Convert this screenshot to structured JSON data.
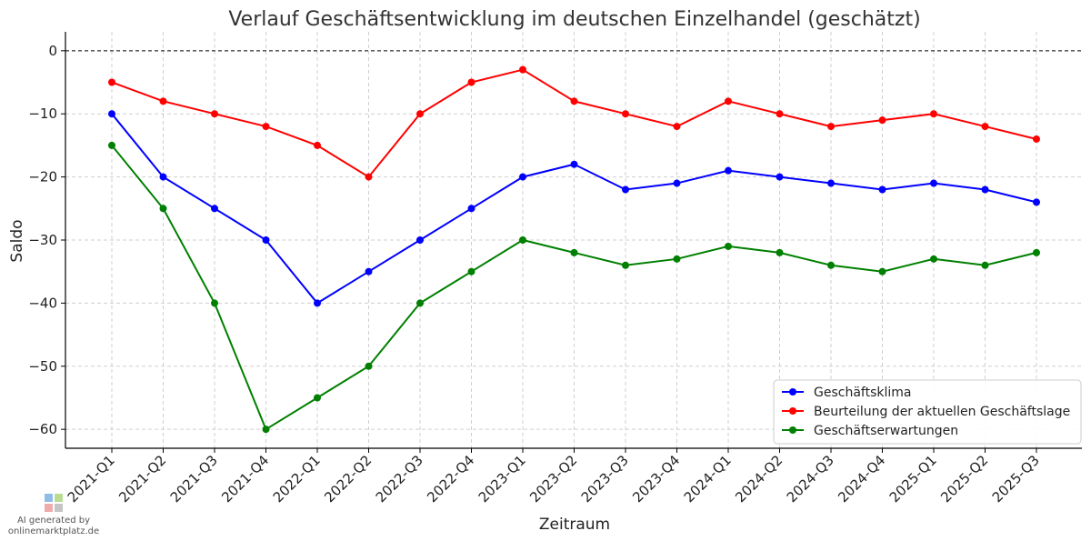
{
  "chart_data": {
    "type": "line",
    "title": "Verlauf Geschäftsentwicklung im deutschen Einzelhandel (geschätzt)",
    "xlabel": "Zeitraum",
    "ylabel": "Saldo",
    "categories": [
      "2021-Q1",
      "2021-Q2",
      "2021-Q3",
      "2021-Q4",
      "2022-Q1",
      "2022-Q2",
      "2022-Q3",
      "2022-Q4",
      "2023-Q1",
      "2023-Q2",
      "2023-Q3",
      "2023-Q4",
      "2024-Q1",
      "2024-Q2",
      "2024-Q3",
      "2024-Q4",
      "2025-Q1",
      "2025-Q2",
      "2025-Q3"
    ],
    "ylim": [
      -63,
      3
    ],
    "yticks": [
      0,
      -10,
      -20,
      -30,
      -40,
      -50,
      -60
    ],
    "ytick_labels": [
      "0",
      "−10",
      "−20",
      "−30",
      "−40",
      "−50",
      "−60"
    ],
    "reference_line": 0,
    "grid": true,
    "legend_position": "lower-right",
    "series": [
      {
        "name": "Geschäftsklima",
        "color": "#0000ff",
        "values": [
          -10,
          -20,
          -25,
          -30,
          -40,
          -35,
          -30,
          -25,
          -20,
          -18,
          -22,
          -21,
          -19,
          -20,
          -21,
          -22,
          -21,
          -22,
          -24
        ]
      },
      {
        "name": "Beurteilung der aktuellen Geschäftslage",
        "color": "#ff0000",
        "values": [
          -5,
          -8,
          -10,
          -12,
          -15,
          -20,
          -10,
          -5,
          -3,
          -8,
          -10,
          -12,
          -8,
          -10,
          -12,
          -11,
          -10,
          -12,
          -14
        ]
      },
      {
        "name": "Geschäftserwartungen",
        "color": "#008000",
        "values": [
          -15,
          -25,
          -40,
          -60,
          -55,
          -50,
          -40,
          -35,
          -30,
          -32,
          -34,
          -33,
          -31,
          -32,
          -34,
          -35,
          -33,
          -34,
          -32
        ]
      }
    ]
  },
  "watermark": {
    "line1": "AI generated by",
    "line2": "onlinemarktplatz.de"
  }
}
